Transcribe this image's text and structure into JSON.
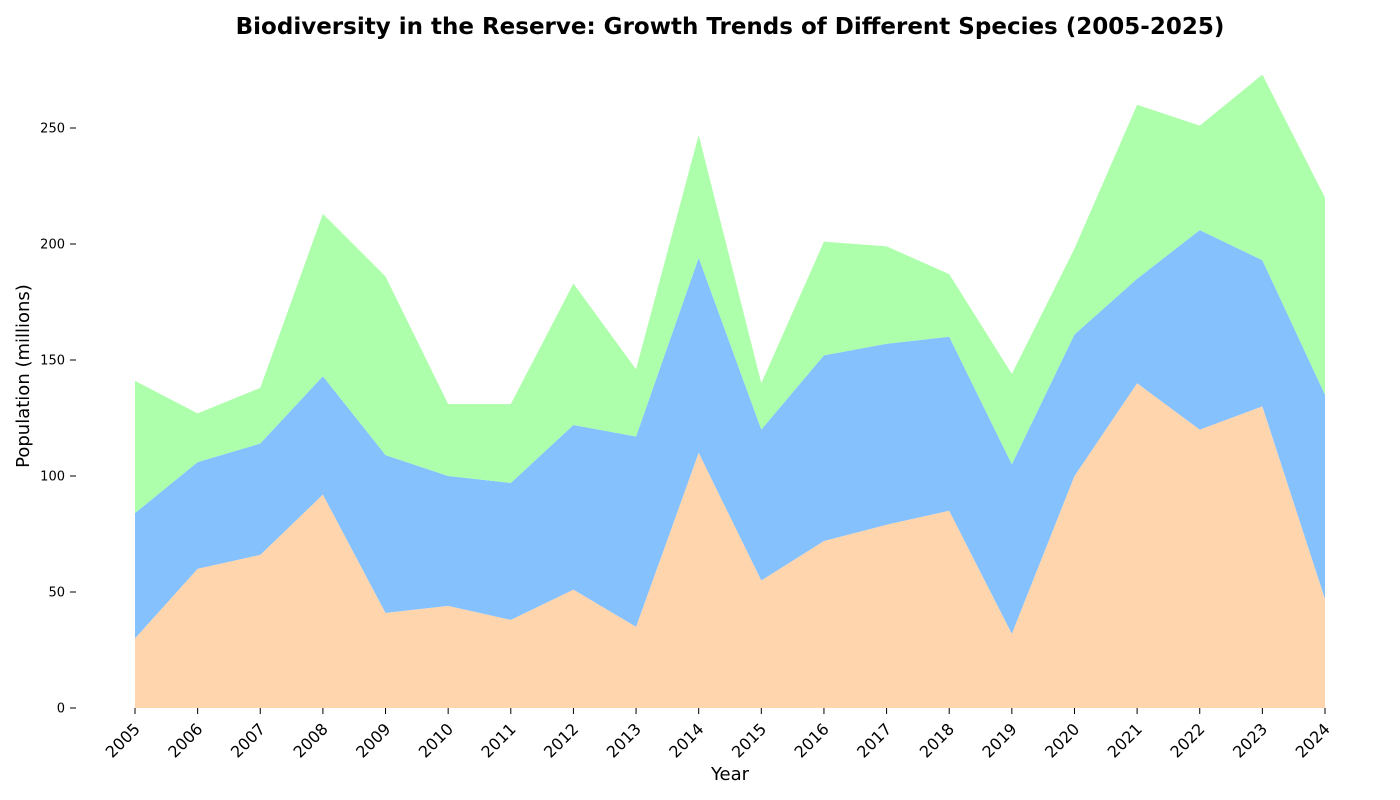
{
  "chart_data": {
    "type": "area",
    "stacked": true,
    "title": "Biodiversity in the Reserve: Growth Trends of Different Species (2005-2025)",
    "xlabel": "Year",
    "ylabel": "Population (millions)",
    "x": [
      2005,
      2006,
      2007,
      2008,
      2009,
      2010,
      2011,
      2012,
      2013,
      2014,
      2015,
      2016,
      2017,
      2018,
      2019,
      2020,
      2021,
      2022,
      2023,
      2024
    ],
    "ylim": [
      0,
      275
    ],
    "yticks": [
      0,
      50,
      100,
      150,
      200,
      250
    ],
    "grid": false,
    "legend": "none",
    "series": [
      {
        "color": "#ffd5ae",
        "values": [
          30,
          60,
          66,
          92,
          41,
          44,
          38,
          51,
          35,
          110,
          55,
          72,
          79,
          85,
          32,
          100,
          140,
          120,
          130,
          47
        ]
      },
      {
        "color": "#84c1fd",
        "values": [
          54,
          46,
          48,
          51,
          68,
          56,
          59,
          71,
          82,
          84,
          65,
          80,
          78,
          75,
          73,
          61,
          45,
          86,
          63,
          88
        ]
      },
      {
        "color": "#adffab",
        "values": [
          57,
          21,
          24,
          70,
          77,
          31,
          34,
          61,
          29,
          53,
          20,
          49,
          42,
          27,
          39,
          37,
          75,
          45,
          80,
          85
        ]
      }
    ]
  }
}
